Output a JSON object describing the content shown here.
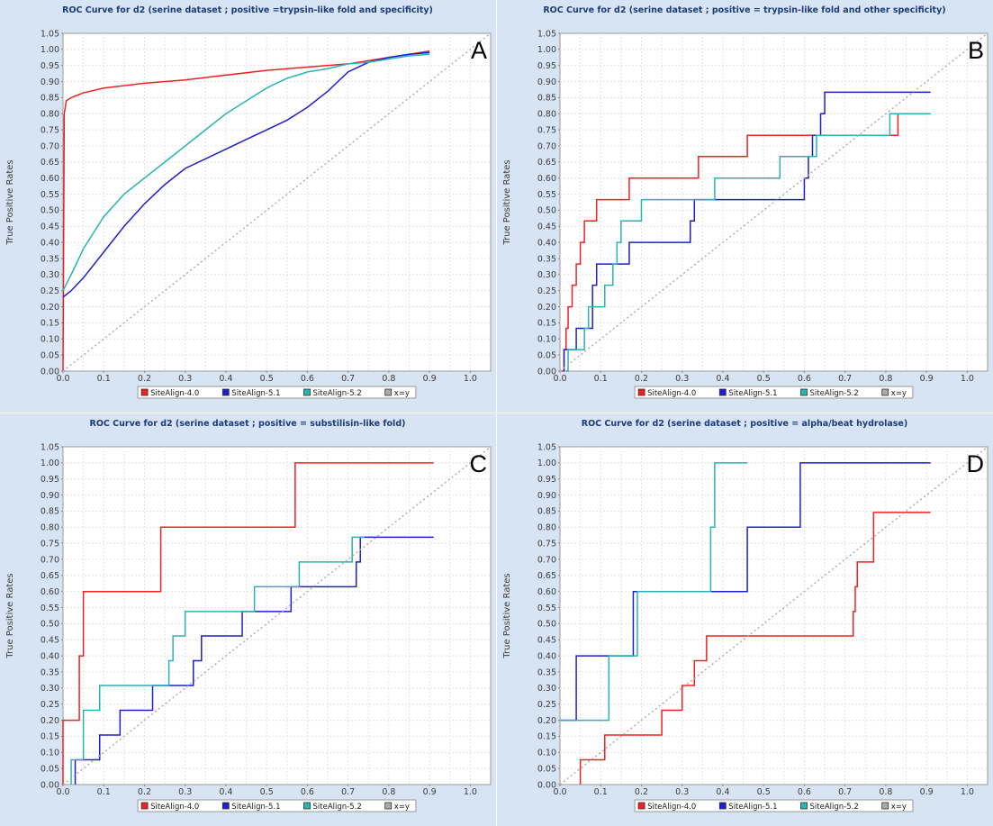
{
  "chart_data": [
    {
      "type": "line",
      "panel_label": "A",
      "title": "ROC Curve for d2 (serine dataset ; positive =trypsin-like fold and specificity)",
      "xlabel": "False Positive Rates",
      "ylabel": "True Positive Rates",
      "xlim": [
        0,
        1.05
      ],
      "ylim": [
        0,
        1.05
      ],
      "x_ticks": [
        "0.0",
        "0.1",
        "0.2",
        "0.3",
        "0.4",
        "0.5",
        "0.6",
        "0.7",
        "0.8",
        "0.9",
        "1.0"
      ],
      "y_ticks": [
        "0.00",
        "0.05",
        "0.10",
        "0.15",
        "0.20",
        "0.25",
        "0.30",
        "0.35",
        "0.40",
        "0.45",
        "0.50",
        "0.55",
        "0.60",
        "0.65",
        "0.70",
        "0.75",
        "0.80",
        "0.85",
        "0.90",
        "0.95",
        "1.00",
        "1.05"
      ],
      "grid": true,
      "legend_position": "bottom",
      "series": [
        {
          "name": "SiteAlign-4.0",
          "color": "#ee2222",
          "step": false,
          "points": [
            [
              0,
              0
            ],
            [
              0.003,
              0.8
            ],
            [
              0.008,
              0.84
            ],
            [
              0.02,
              0.85
            ],
            [
              0.05,
              0.865
            ],
            [
              0.1,
              0.88
            ],
            [
              0.2,
              0.895
            ],
            [
              0.3,
              0.905
            ],
            [
              0.4,
              0.92
            ],
            [
              0.5,
              0.935
            ],
            [
              0.6,
              0.945
            ],
            [
              0.7,
              0.955
            ],
            [
              0.8,
              0.975
            ],
            [
              0.85,
              0.985
            ],
            [
              0.9,
              0.995
            ]
          ]
        },
        {
          "name": "SiteAlign-5.1",
          "color": "#1f1fcc",
          "step": false,
          "points": [
            [
              0,
              0.23
            ],
            [
              0.02,
              0.25
            ],
            [
              0.05,
              0.29
            ],
            [
              0.1,
              0.37
            ],
            [
              0.15,
              0.45
            ],
            [
              0.2,
              0.52
            ],
            [
              0.25,
              0.58
            ],
            [
              0.3,
              0.63
            ],
            [
              0.35,
              0.66
            ],
            [
              0.4,
              0.69
            ],
            [
              0.45,
              0.72
            ],
            [
              0.5,
              0.75
            ],
            [
              0.55,
              0.78
            ],
            [
              0.6,
              0.82
            ],
            [
              0.65,
              0.87
            ],
            [
              0.7,
              0.93
            ],
            [
              0.75,
              0.96
            ],
            [
              0.8,
              0.975
            ],
            [
              0.85,
              0.985
            ],
            [
              0.9,
              0.99
            ]
          ]
        },
        {
          "name": "SiteAlign-5.2",
          "color": "#2ab3b3",
          "step": false,
          "points": [
            [
              0,
              0.25
            ],
            [
              0.02,
              0.3
            ],
            [
              0.05,
              0.38
            ],
            [
              0.1,
              0.48
            ],
            [
              0.15,
              0.55
            ],
            [
              0.2,
              0.6
            ],
            [
              0.25,
              0.65
            ],
            [
              0.3,
              0.7
            ],
            [
              0.35,
              0.75
            ],
            [
              0.4,
              0.8
            ],
            [
              0.45,
              0.84
            ],
            [
              0.5,
              0.88
            ],
            [
              0.55,
              0.91
            ],
            [
              0.6,
              0.93
            ],
            [
              0.65,
              0.94
            ],
            [
              0.7,
              0.955
            ],
            [
              0.75,
              0.96
            ],
            [
              0.8,
              0.97
            ],
            [
              0.85,
              0.98
            ],
            [
              0.9,
              0.985
            ]
          ]
        },
        {
          "name": "x=y",
          "color": "#aaaaaa",
          "dashed": true,
          "points": [
            [
              0,
              0
            ],
            [
              1.05,
              1.05
            ]
          ]
        }
      ]
    },
    {
      "type": "line",
      "panel_label": "B",
      "title": "ROC Curve for d2 (serine dataset ; positive = trypsin-like fold and other specificity)",
      "xlabel": "False Positive Rates",
      "ylabel": "True Positive Rates",
      "xlim": [
        0,
        1.05
      ],
      "ylim": [
        0,
        1.05
      ],
      "x_ticks": [
        "0.0",
        "0.1",
        "0.2",
        "0.3",
        "0.4",
        "0.5",
        "0.6",
        "0.7",
        "0.8",
        "0.9",
        "1.0"
      ],
      "y_ticks": [
        "0.00",
        "0.05",
        "0.10",
        "0.15",
        "0.20",
        "0.25",
        "0.30",
        "0.35",
        "0.40",
        "0.45",
        "0.50",
        "0.55",
        "0.60",
        "0.65",
        "0.70",
        "0.75",
        "0.80",
        "0.85",
        "0.90",
        "0.95",
        "1.00",
        "1.05"
      ],
      "grid": true,
      "legend_position": "bottom",
      "series": [
        {
          "name": "SiteAlign-4.0",
          "color": "#ee2222",
          "step": true,
          "points": [
            [
              0.005,
              0
            ],
            [
              0.01,
              0.067
            ],
            [
              0.015,
              0.133
            ],
            [
              0.02,
              0.2
            ],
            [
              0.03,
              0.267
            ],
            [
              0.04,
              0.333
            ],
            [
              0.05,
              0.4
            ],
            [
              0.06,
              0.467
            ],
            [
              0.09,
              0.533
            ],
            [
              0.17,
              0.6
            ],
            [
              0.34,
              0.667
            ],
            [
              0.46,
              0.733
            ],
            [
              0.83,
              0.8
            ],
            [
              0.91,
              0.8
            ]
          ]
        },
        {
          "name": "SiteAlign-5.1",
          "color": "#1f1fcc",
          "step": true,
          "points": [
            [
              0.01,
              0
            ],
            [
              0.01,
              0.067
            ],
            [
              0.04,
              0.133
            ],
            [
              0.08,
              0.2
            ],
            [
              0.08,
              0.267
            ],
            [
              0.09,
              0.333
            ],
            [
              0.17,
              0.4
            ],
            [
              0.32,
              0.467
            ],
            [
              0.33,
              0.533
            ],
            [
              0.6,
              0.6
            ],
            [
              0.61,
              0.667
            ],
            [
              0.62,
              0.733
            ],
            [
              0.64,
              0.8
            ],
            [
              0.65,
              0.867
            ],
            [
              0.91,
              0.867
            ]
          ]
        },
        {
          "name": "SiteAlign-5.2",
          "color": "#2ab3b3",
          "step": true,
          "points": [
            [
              0.015,
              0
            ],
            [
              0.02,
              0.067
            ],
            [
              0.06,
              0.133
            ],
            [
              0.07,
              0.2
            ],
            [
              0.11,
              0.267
            ],
            [
              0.13,
              0.333
            ],
            [
              0.14,
              0.4
            ],
            [
              0.15,
              0.467
            ],
            [
              0.2,
              0.533
            ],
            [
              0.38,
              0.6
            ],
            [
              0.54,
              0.667
            ],
            [
              0.63,
              0.733
            ],
            [
              0.81,
              0.8
            ],
            [
              0.91,
              0.8
            ]
          ]
        },
        {
          "name": "x=y",
          "color": "#aaaaaa",
          "dashed": true,
          "points": [
            [
              0,
              0
            ],
            [
              1.05,
              1.05
            ]
          ]
        }
      ]
    },
    {
      "type": "line",
      "panel_label": "C",
      "title": "ROC Curve for d2 (serine dataset ; positive = substilisin-like fold)",
      "xlabel": "False Positive Rates",
      "ylabel": "True Positive Rates",
      "xlim": [
        0,
        1.05
      ],
      "ylim": [
        0,
        1.05
      ],
      "x_ticks": [
        "0.0",
        "0.1",
        "0.2",
        "0.3",
        "0.4",
        "0.5",
        "0.6",
        "0.7",
        "0.8",
        "0.9",
        "1.0"
      ],
      "y_ticks": [
        "0.00",
        "0.05",
        "0.10",
        "0.15",
        "0.20",
        "0.25",
        "0.30",
        "0.35",
        "0.40",
        "0.45",
        "0.50",
        "0.55",
        "0.60",
        "0.65",
        "0.70",
        "0.75",
        "0.80",
        "0.85",
        "0.90",
        "0.95",
        "1.00",
        "1.05"
      ],
      "grid": true,
      "legend_position": "bottom",
      "series": [
        {
          "name": "SiteAlign-4.0",
          "color": "#ee2222",
          "step": true,
          "points": [
            [
              0,
              0
            ],
            [
              0,
              0.2
            ],
            [
              0.04,
              0.4
            ],
            [
              0.05,
              0.6
            ],
            [
              0.24,
              0.8
            ],
            [
              0.57,
              1.0
            ],
            [
              0.91,
              1.0
            ]
          ]
        },
        {
          "name": "SiteAlign-5.1",
          "color": "#1f1fcc",
          "step": true,
          "points": [
            [
              0.03,
              0
            ],
            [
              0.03,
              0.077
            ],
            [
              0.09,
              0.154
            ],
            [
              0.14,
              0.231
            ],
            [
              0.22,
              0.308
            ],
            [
              0.32,
              0.385
            ],
            [
              0.34,
              0.462
            ],
            [
              0.44,
              0.538
            ],
            [
              0.56,
              0.615
            ],
            [
              0.72,
              0.692
            ],
            [
              0.73,
              0.769
            ],
            [
              0.91,
              0.769
            ]
          ]
        },
        {
          "name": "SiteAlign-5.2",
          "color": "#2ab3b3",
          "step": true,
          "points": [
            [
              0.02,
              0
            ],
            [
              0.02,
              0.077
            ],
            [
              0.05,
              0.154
            ],
            [
              0.05,
              0.231
            ],
            [
              0.09,
              0.308
            ],
            [
              0.26,
              0.385
            ],
            [
              0.27,
              0.462
            ],
            [
              0.3,
              0.538
            ],
            [
              0.47,
              0.615
            ],
            [
              0.58,
              0.692
            ],
            [
              0.71,
              0.769
            ],
            [
              0.74,
              0.769
            ]
          ]
        },
        {
          "name": "x=y",
          "color": "#aaaaaa",
          "dashed": true,
          "points": [
            [
              0,
              0
            ],
            [
              1.05,
              1.05
            ]
          ]
        }
      ]
    },
    {
      "type": "line",
      "panel_label": "D",
      "title": "ROC Curve for d2 (serine dataset ; positive = alpha/beat hydrolase)",
      "xlabel": "False Positive Rates",
      "ylabel": "True Positive Rates",
      "xlim": [
        0,
        1.05
      ],
      "ylim": [
        0,
        1.05
      ],
      "x_ticks": [
        "0.0",
        "0.1",
        "0.2",
        "0.3",
        "0.4",
        "0.5",
        "0.6",
        "0.7",
        "0.8",
        "0.9",
        "1.0"
      ],
      "y_ticks": [
        "0.00",
        "0.05",
        "0.10",
        "0.15",
        "0.20",
        "0.25",
        "0.30",
        "0.35",
        "0.40",
        "0.45",
        "0.50",
        "0.55",
        "0.60",
        "0.65",
        "0.70",
        "0.75",
        "0.80",
        "0.85",
        "0.90",
        "0.95",
        "1.00",
        "1.05"
      ],
      "grid": true,
      "legend_position": "bottom",
      "series": [
        {
          "name": "SiteAlign-4.0",
          "color": "#ee2222",
          "step": true,
          "points": [
            [
              0.05,
              0
            ],
            [
              0.05,
              0.077
            ],
            [
              0.11,
              0.154
            ],
            [
              0.25,
              0.231
            ],
            [
              0.3,
              0.308
            ],
            [
              0.33,
              0.385
            ],
            [
              0.36,
              0.462
            ],
            [
              0.72,
              0.538
            ],
            [
              0.725,
              0.615
            ],
            [
              0.73,
              0.692
            ],
            [
              0.77,
              0.846
            ],
            [
              0.91,
              0.846
            ]
          ]
        },
        {
          "name": "SiteAlign-5.1",
          "color": "#1f1fcc",
          "step": true,
          "points": [
            [
              0,
              0.2
            ],
            [
              0.04,
              0.4
            ],
            [
              0.18,
              0.6
            ],
            [
              0.46,
              0.8
            ],
            [
              0.59,
              1.0
            ],
            [
              0.91,
              1.0
            ]
          ]
        },
        {
          "name": "SiteAlign-5.2",
          "color": "#2ab3b3",
          "step": true,
          "points": [
            [
              0,
              0.2
            ],
            [
              0.12,
              0.4
            ],
            [
              0.19,
              0.6
            ],
            [
              0.37,
              0.8
            ],
            [
              0.38,
              1.0
            ],
            [
              0.46,
              1.0
            ]
          ]
        },
        {
          "name": "x=y",
          "color": "#aaaaaa",
          "dashed": true,
          "points": [
            [
              0,
              0
            ],
            [
              1.05,
              1.05
            ]
          ]
        }
      ]
    }
  ]
}
